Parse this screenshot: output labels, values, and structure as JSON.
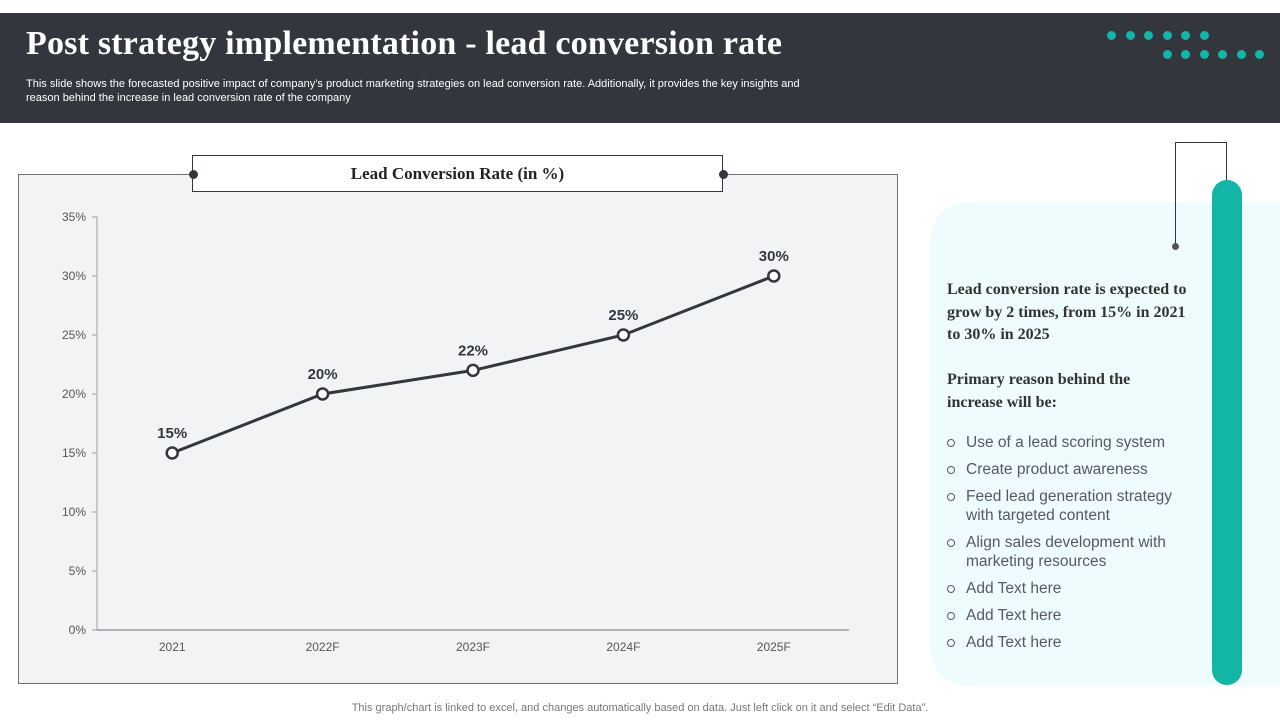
{
  "header": {
    "title": "Post strategy implementation - lead conversion rate",
    "subtitle": "This slide shows the forecasted positive impact of company’s product marketing strategies on lead conversion rate. Additionally, it provides the key insights and reason behind the increase in lead conversion rate of the company"
  },
  "colors": {
    "header_bg": "#33373d",
    "accent": "#12b5a6",
    "panel_bg": "#effcfd",
    "line": "#33373d"
  },
  "chart_data": {
    "type": "line",
    "title": "Lead Conversion Rate (in %)",
    "categories": [
      "2021",
      "2022F",
      "2023F",
      "2024F",
      "2025F"
    ],
    "series": [
      {
        "values": [
          15,
          20,
          22,
          25,
          30
        ]
      }
    ],
    "data_labels": [
      "15%",
      "20%",
      "22%",
      "25%",
      "30%"
    ],
    "y_ticks": [
      "0%",
      "5%",
      "10%",
      "15%",
      "20%",
      "25%",
      "30%",
      "35%"
    ],
    "ylim": [
      0,
      35
    ],
    "xlabel": "",
    "ylabel": "",
    "grid": false,
    "legend": "none"
  },
  "insights": {
    "highlight": "Lead conversion rate is expected to grow by 2 times, from 15% in 2021 to 30% in 2025",
    "reason_heading": "Primary reason behind the increase will be:",
    "bullets": [
      "Use of a lead scoring system",
      "Create product awareness",
      "Feed lead generation strategy with targeted content",
      "Align sales development with marketing resources",
      "Add Text here",
      "Add Text here",
      "Add Text here"
    ]
  },
  "footer": "This graph/chart is linked to excel,  and changes automatically based on data. Just left click on it and select “Edit Data”."
}
